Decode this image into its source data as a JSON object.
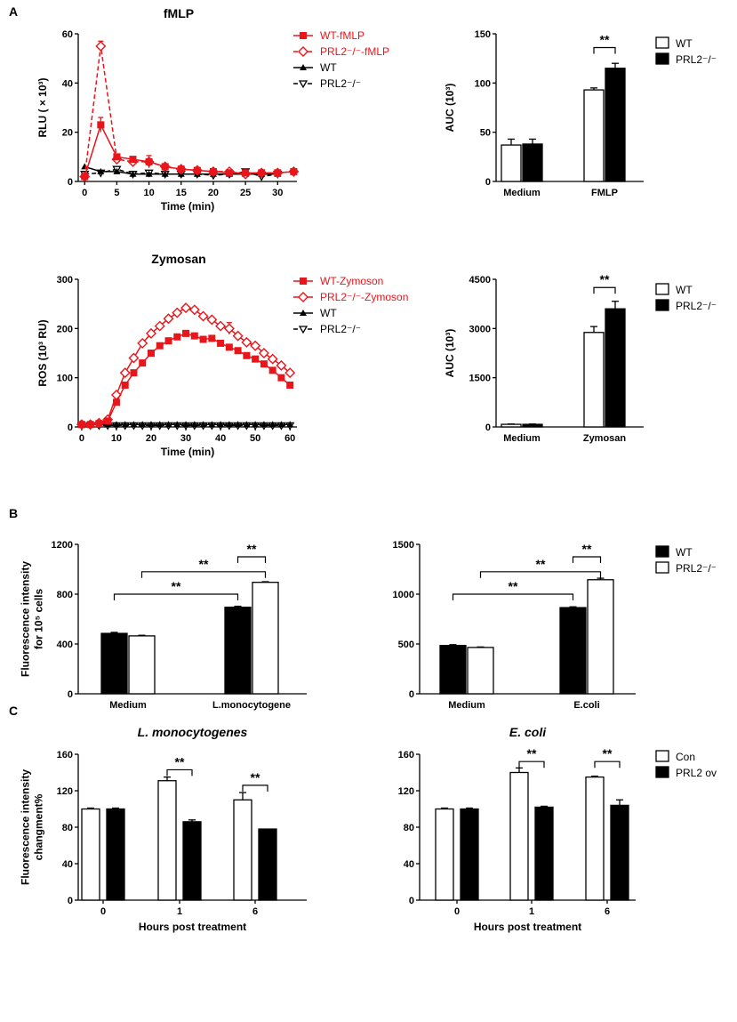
{
  "panel_labels": [
    "A",
    "B",
    "C"
  ],
  "colors": {
    "red": "#e8151b",
    "black": "#000000",
    "white": "#ffffff"
  },
  "chart_data": [
    {
      "id": "fmlp_line",
      "type": "line",
      "title": "fMLP",
      "xlabel": "Time (min)",
      "ylabel": "RLU ( × 10³)",
      "xlim": [
        -1,
        33
      ],
      "ylim": [
        0,
        60
      ],
      "xticks": [
        0,
        5,
        10,
        15,
        20,
        25,
        30
      ],
      "yticks": [
        0,
        20,
        40,
        60
      ],
      "legend": [
        "WT-fMLP",
        "PRL2⁻/⁻-fMLP",
        "WT",
        "PRL2⁻/⁻"
      ],
      "series": [
        {
          "name": "WT-fMLP",
          "style": "red-solid-square",
          "x": [
            0,
            2.5,
            5,
            7.5,
            10,
            12.5,
            15,
            17.5,
            20,
            22.5,
            25,
            27.5,
            30,
            32.5
          ],
          "y": [
            2,
            23,
            10,
            9,
            8,
            6,
            5,
            4.5,
            4,
            3.5,
            3.5,
            3.5,
            3.5,
            4
          ],
          "err": [
            0.5,
            3,
            1,
            1,
            1,
            0.8,
            0.5,
            0.5,
            0.5,
            0.5,
            0.5,
            0.5,
            0.5,
            0.5
          ]
        },
        {
          "name": "PRL2⁻/⁻-fMLP",
          "style": "red-dashed-diamond",
          "x": [
            0,
            2.5,
            5,
            7.5,
            10,
            12.5,
            15,
            17.5,
            20,
            22.5,
            25,
            27.5,
            30,
            32.5
          ],
          "y": [
            2,
            55,
            9,
            8,
            8,
            6,
            5,
            4.5,
            4,
            4,
            3,
            3.5,
            3.5,
            4
          ],
          "err": [
            0.5,
            2,
            1,
            1,
            2.5,
            0.8,
            0.5,
            0.5,
            0.5,
            0.5,
            0.5,
            0.5,
            0.5,
            0.5
          ]
        },
        {
          "name": "WT",
          "style": "black-solid-triangle",
          "x": [
            0,
            2.5,
            5,
            7.5,
            10,
            12.5,
            15,
            17.5,
            20,
            22.5,
            25,
            27.5,
            30
          ],
          "y": [
            6,
            4,
            4,
            3,
            3,
            3,
            3,
            3,
            3,
            3,
            3,
            3,
            3
          ],
          "err": [
            0,
            0,
            0,
            0,
            0,
            0,
            0,
            0,
            0,
            0,
            0,
            0,
            0
          ]
        },
        {
          "name": "PRL2⁻/⁻",
          "style": "black-dashed-invtriangle",
          "x": [
            0,
            2.5,
            5,
            7.5,
            10,
            12.5,
            15,
            17.5,
            20,
            22.5,
            25,
            27.5,
            30
          ],
          "y": [
            3,
            3.5,
            5,
            3,
            3.5,
            3,
            3,
            3,
            2.5,
            3,
            4,
            2,
            3
          ],
          "err": [
            0,
            0,
            0,
            0,
            0,
            0,
            0,
            0,
            0,
            0,
            0,
            0,
            0
          ]
        }
      ]
    },
    {
      "id": "fmlp_auc",
      "type": "bar",
      "ylabel": "AUC (10³)",
      "ylim": [
        0,
        150
      ],
      "yticks": [
        0,
        50,
        100,
        150
      ],
      "categories": [
        "Medium",
        "FMLP"
      ],
      "legend": [
        "WT",
        "PRL2⁻/⁻"
      ],
      "series": [
        {
          "name": "WT",
          "fill": "white",
          "values": [
            37,
            93
          ],
          "err": [
            6,
            2
          ]
        },
        {
          "name": "PRL2⁻/⁻",
          "fill": "black",
          "values": [
            38,
            115
          ],
          "err": [
            5,
            5
          ]
        }
      ],
      "significance": [
        {
          "label": "**",
          "from_cat": 1,
          "from_series": 0,
          "to_cat": 1,
          "to_series": 1,
          "level": 136
        }
      ]
    },
    {
      "id": "zymosan_line",
      "type": "line",
      "title": "Zymosan",
      "xlabel": "Time (min)",
      "ylabel": "ROS (10³ RU)",
      "xlim": [
        -1,
        62
      ],
      "ylim": [
        0,
        300
      ],
      "xticks": [
        0,
        10,
        20,
        30,
        40,
        50,
        60
      ],
      "yticks": [
        0,
        100,
        200,
        300
      ],
      "legend": [
        "WT-Zymoson",
        "PRL2⁻/⁻-Zymoson",
        "WT",
        "PRL2⁻/⁻"
      ],
      "series": [
        {
          "name": "WT-Zymoson",
          "style": "red-solid-square",
          "x": [
            0,
            2.5,
            5,
            7.5,
            10,
            12.5,
            15,
            17.5,
            20,
            22.5,
            25,
            27.5,
            30,
            32.5,
            35,
            37.5,
            40,
            42.5,
            45,
            47.5,
            50,
            52.5,
            55,
            57.5,
            60
          ],
          "y": [
            5,
            5,
            7,
            12,
            50,
            85,
            110,
            130,
            150,
            165,
            175,
            183,
            190,
            185,
            178,
            180,
            170,
            162,
            155,
            145,
            138,
            128,
            115,
            100,
            85
          ],
          "err": [
            0,
            0,
            0,
            0,
            0,
            0,
            0,
            0,
            0,
            0,
            0,
            0,
            6,
            0,
            0,
            0,
            0,
            0,
            0,
            0,
            0,
            0,
            0,
            0,
            0
          ]
        },
        {
          "name": "PRL2⁻/⁻-Zymoson",
          "style": "red-solid-diamond",
          "x": [
            0,
            2.5,
            5,
            7.5,
            10,
            12.5,
            15,
            17.5,
            20,
            22.5,
            25,
            27.5,
            30,
            32.5,
            35,
            37.5,
            40,
            42.5,
            45,
            47.5,
            50,
            52.5,
            55,
            57.5,
            60
          ],
          "y": [
            5,
            5,
            8,
            15,
            65,
            110,
            140,
            170,
            190,
            205,
            220,
            232,
            242,
            238,
            225,
            218,
            205,
            200,
            185,
            172,
            165,
            150,
            138,
            125,
            110
          ],
          "err": [
            0,
            0,
            0,
            0,
            0,
            0,
            0,
            0,
            0,
            0,
            0,
            0,
            0,
            0,
            0,
            0,
            0,
            12,
            0,
            0,
            0,
            0,
            0,
            0,
            0
          ]
        },
        {
          "name": "WT",
          "style": "black-solid-triangle",
          "x": [
            0,
            2.5,
            5,
            7.5,
            10,
            12.5,
            15,
            17.5,
            20,
            22.5,
            25,
            27.5,
            30,
            32.5,
            35,
            37.5,
            40,
            42.5,
            45,
            47.5,
            50,
            52.5,
            55,
            57.5,
            60
          ],
          "y": [
            5,
            5,
            5,
            5,
            5,
            5,
            5,
            5,
            5,
            5,
            5,
            5,
            5,
            5,
            5,
            5,
            5,
            5,
            5,
            5,
            5,
            5,
            5,
            5,
            5
          ],
          "err": [
            0,
            0,
            0,
            0,
            0,
            0,
            0,
            0,
            0,
            0,
            0,
            0,
            0,
            0,
            0,
            0,
            0,
            0,
            0,
            0,
            0,
            0,
            0,
            0,
            0
          ]
        },
        {
          "name": "PRL2⁻/⁻",
          "style": "black-dashed-invtriangle",
          "x": [
            0,
            2.5,
            5,
            7.5,
            10,
            12.5,
            15,
            17.5,
            20,
            22.5,
            25,
            27.5,
            30,
            32.5,
            35,
            37.5,
            40,
            42.5,
            45,
            47.5,
            50,
            52.5,
            55,
            57.5,
            60
          ],
          "y": [
            3,
            3,
            3,
            3,
            3,
            3,
            3,
            3,
            3,
            3,
            3,
            3,
            3,
            3,
            3,
            3,
            3,
            3,
            3,
            3,
            3,
            3,
            3,
            3,
            3
          ],
          "err": [
            0,
            0,
            0,
            0,
            0,
            0,
            0,
            0,
            0,
            0,
            0,
            0,
            0,
            0,
            0,
            0,
            0,
            0,
            0,
            0,
            0,
            0,
            0,
            0,
            0
          ]
        }
      ]
    },
    {
      "id": "zymosan_auc",
      "type": "bar",
      "ylabel": "AUC (10³)",
      "ylim": [
        0,
        4500
      ],
      "yticks": [
        0,
        1500,
        3000,
        4500
      ],
      "categories": [
        "Medium",
        "Zymosan"
      ],
      "legend": [
        "WT",
        "PRL2⁻/⁻"
      ],
      "series": [
        {
          "name": "WT",
          "fill": "white",
          "values": [
            80,
            2880
          ],
          "err": [
            10,
            180
          ]
        },
        {
          "name": "PRL2⁻/⁻",
          "fill": "black",
          "values": [
            80,
            3600
          ],
          "err": [
            10,
            230
          ]
        }
      ],
      "significance": [
        {
          "label": "**",
          "from_cat": 1,
          "from_series": 0,
          "to_cat": 1,
          "to_series": 1,
          "level": 4250
        }
      ]
    },
    {
      "id": "b_lmono",
      "type": "bar",
      "ylabel": "Fluorescence intensity for 10⁵ cells",
      "ylim": [
        0,
        1200
      ],
      "yticks": [
        0,
        400,
        800,
        1200
      ],
      "categories": [
        "Medium",
        "L.monocytogene"
      ],
      "series": [
        {
          "name": "WT",
          "fill": "black",
          "values": [
            485,
            695
          ],
          "err": [
            8,
            8
          ]
        },
        {
          "name": "PRL2⁻/⁻",
          "fill": "white",
          "values": [
            465,
            895
          ],
          "err": [
            5,
            5
          ]
        }
      ],
      "significance": [
        {
          "label": "**",
          "from_cat": 0,
          "from_series": 0,
          "to_cat": 1,
          "to_series": 0,
          "level": 800
        },
        {
          "label": "**",
          "from_cat": 0,
          "from_series": 1,
          "to_cat": 1,
          "to_series": 1,
          "level": 980
        },
        {
          "label": "**",
          "from_cat": 1,
          "from_series": 0,
          "to_cat": 1,
          "to_series": 1,
          "level": 1100
        }
      ]
    },
    {
      "id": "b_ecoli",
      "type": "bar",
      "ylim": [
        0,
        1500
      ],
      "yticks": [
        0,
        500,
        1000,
        1500
      ],
      "categories": [
        "Medium",
        "E.coli"
      ],
      "legend": [
        "WT",
        "PRL2⁻/⁻"
      ],
      "series": [
        {
          "name": "WT",
          "fill": "black",
          "values": [
            485,
            865
          ],
          "err": [
            8,
            8
          ]
        },
        {
          "name": "PRL2⁻/⁻",
          "fill": "white",
          "values": [
            465,
            1145
          ],
          "err": [
            5,
            15
          ]
        }
      ],
      "significance": [
        {
          "label": "**",
          "from_cat": 0,
          "from_series": 0,
          "to_cat": 1,
          "to_series": 0,
          "level": 1000
        },
        {
          "label": "**",
          "from_cat": 0,
          "from_series": 1,
          "to_cat": 1,
          "to_series": 1,
          "level": 1225
        },
        {
          "label": "**",
          "from_cat": 1,
          "from_series": 0,
          "to_cat": 1,
          "to_series": 1,
          "level": 1375
        }
      ]
    },
    {
      "id": "c_lmono",
      "type": "bar",
      "title": "L. monocytogenes",
      "xlabel": "Hours post treatment",
      "ylabel": "Fluorescence intensity changment%",
      "ylim": [
        0,
        160
      ],
      "yticks": [
        0,
        40,
        80,
        120,
        160
      ],
      "categories": [
        "0",
        "1",
        "6"
      ],
      "series": [
        {
          "name": "Con",
          "fill": "white",
          "values": [
            100,
            131,
            110
          ],
          "err": [
            1,
            4,
            8
          ]
        },
        {
          "name": "PRL2 ov",
          "fill": "black",
          "values": [
            100,
            86,
            78
          ],
          "err": [
            1,
            2,
            0
          ]
        }
      ],
      "significance": [
        {
          "label": "**",
          "from_cat": 1,
          "from_series": 0,
          "to_cat": 1,
          "to_series": 1,
          "level": 143
        },
        {
          "label": "**",
          "from_cat": 2,
          "from_series": 0,
          "to_cat": 2,
          "to_series": 1,
          "level": 126
        }
      ]
    },
    {
      "id": "c_ecoli",
      "type": "bar",
      "title": "E. coli",
      "xlabel": "Hours post treatment",
      "ylim": [
        0,
        160
      ],
      "yticks": [
        0,
        40,
        80,
        120,
        160
      ],
      "categories": [
        "0",
        "1",
        "6"
      ],
      "legend": [
        "Con",
        "PRL2 ov"
      ],
      "series": [
        {
          "name": "Con",
          "fill": "white",
          "values": [
            100,
            140,
            135
          ],
          "err": [
            1,
            5,
            1
          ]
        },
        {
          "name": "PRL2 ov",
          "fill": "black",
          "values": [
            100,
            102,
            104
          ],
          "err": [
            1,
            1,
            6
          ]
        }
      ],
      "significance": [
        {
          "label": "**",
          "from_cat": 1,
          "from_series": 0,
          "to_cat": 1,
          "to_series": 1,
          "level": 152
        },
        {
          "label": "**",
          "from_cat": 2,
          "from_series": 0,
          "to_cat": 2,
          "to_series": 1,
          "level": 152
        }
      ]
    }
  ]
}
